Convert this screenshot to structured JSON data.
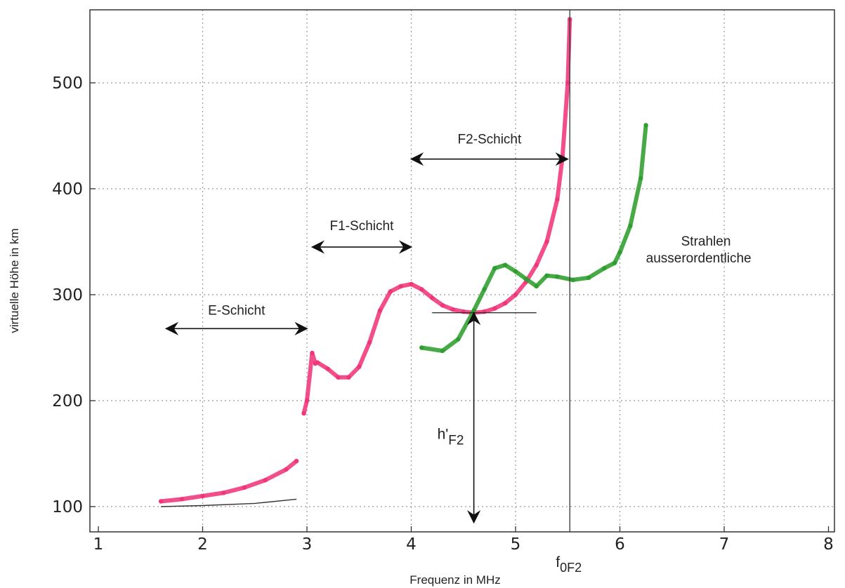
{
  "chart_data": {
    "type": "scatter",
    "title": "",
    "xlabel": "Frequenz in MHz",
    "ylabel": "virtuelle Höhe in km",
    "xlim": [
      1,
      8
    ],
    "ylim": [
      80,
      570
    ],
    "x_ticks": [
      1,
      2,
      3,
      4,
      5,
      6,
      7,
      8
    ],
    "y_ticks": [
      100,
      200,
      300,
      400,
      500
    ],
    "grid": true,
    "colors": {
      "ordinary": "#f0367a",
      "extraordinary": "#2e9e2e",
      "trace": "#333333"
    },
    "series": [
      {
        "color_key": "ordinary",
        "segments": [
          [
            [
              1.6,
              105
            ],
            [
              1.8,
              107
            ],
            [
              2.0,
              110
            ],
            [
              2.2,
              113
            ],
            [
              2.4,
              118
            ],
            [
              2.6,
              125
            ],
            [
              2.8,
              135
            ],
            [
              2.9,
              143
            ]
          ],
          [
            [
              2.97,
              188
            ],
            [
              3.0,
              200
            ],
            [
              3.05,
              245
            ],
            [
              3.08,
              235
            ]
          ],
          [
            [
              3.1,
              236
            ],
            [
              3.2,
              230
            ],
            [
              3.3,
              222
            ],
            [
              3.4,
              222
            ],
            [
              3.5,
              232
            ],
            [
              3.6,
              255
            ],
            [
              3.7,
              285
            ],
            [
              3.8,
              303
            ],
            [
              3.9,
              308
            ],
            [
              4.0,
              310
            ],
            [
              4.1,
              305
            ],
            [
              4.2,
              297
            ],
            [
              4.3,
              290
            ],
            [
              4.4,
              286
            ],
            [
              4.5,
              284
            ],
            [
              4.6,
              283
            ],
            [
              4.7,
              284
            ],
            [
              4.8,
              287
            ],
            [
              4.9,
              292
            ],
            [
              5.0,
              300
            ],
            [
              5.1,
              312
            ],
            [
              5.2,
              328
            ],
            [
              5.3,
              350
            ],
            [
              5.4,
              390
            ],
            [
              5.45,
              430
            ],
            [
              5.5,
              500
            ],
            [
              5.52,
              560
            ]
          ]
        ]
      },
      {
        "color_key": "extraordinary",
        "segments": [
          [
            [
              4.1,
              250
            ],
            [
              4.3,
              247
            ],
            [
              4.45,
              258
            ],
            [
              4.6,
              285
            ],
            [
              4.7,
              305
            ],
            [
              4.8,
              325
            ],
            [
              4.9,
              328
            ],
            [
              5.0,
              322
            ],
            [
              5.1,
              315
            ],
            [
              5.2,
              308
            ],
            [
              5.3,
              318
            ],
            [
              5.4,
              317
            ],
            [
              5.55,
              314
            ],
            [
              5.7,
              316
            ],
            [
              5.85,
              325
            ],
            [
              5.95,
              330
            ],
            [
              6.0,
              340
            ],
            [
              6.1,
              365
            ],
            [
              6.2,
              410
            ],
            [
              6.25,
              460
            ]
          ]
        ]
      }
    ],
    "annotations": [
      {
        "label": "E-Schicht",
        "x_from": 1.65,
        "x_to": 3.0,
        "y": 268
      },
      {
        "label": "F1-Schicht",
        "x_from": 3.05,
        "x_to": 4.0,
        "y": 345
      },
      {
        "label": "F2-Schicht",
        "x_from": 4.0,
        "x_to": 5.5,
        "y": 428
      },
      {
        "label_main": "ausserordentliche",
        "label_sub": "Strahlen",
        "x": 6.25,
        "y": 335
      },
      {
        "label_main": "h'",
        "label_sub": "F2",
        "x": 4.6,
        "y_top": 283,
        "y_bottom": 85
      },
      {
        "label_main": "f",
        "label_sub": "0F2",
        "x": 5.52
      }
    ],
    "reference_lines": {
      "h_line_y": 283,
      "h_line_x": [
        4.2,
        5.2
      ],
      "v_line_x": 5.52
    }
  }
}
